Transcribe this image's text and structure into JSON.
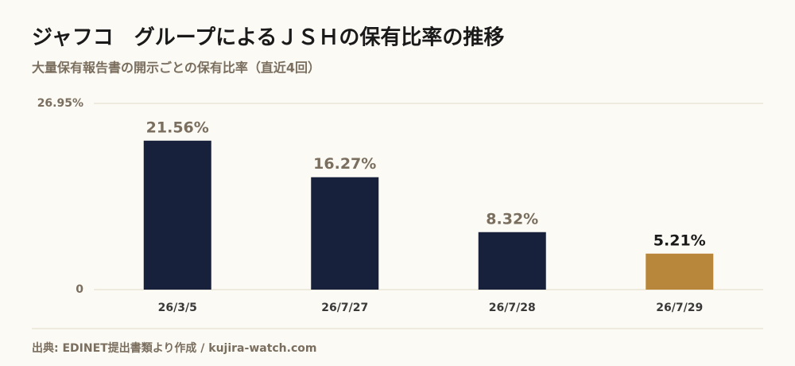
{
  "chart_data": {
    "type": "bar",
    "title": "ジャフコ　グループによるＪＳＨの保有比率の推移",
    "subtitle": "大量保有報告書の開示ごとの保有比率（直近4回）",
    "categories": [
      "26/3/5",
      "26/7/27",
      "26/7/28",
      "26/7/29"
    ],
    "values": [
      21.56,
      16.27,
      8.32,
      5.21
    ],
    "value_labels": [
      "21.56%",
      "16.27%",
      "8.32%",
      "5.21%"
    ],
    "colors": [
      "#17213b",
      "#17213b",
      "#17213b",
      "#b8873b"
    ],
    "label_colors": [
      "#7a6e5f",
      "#7a6e5f",
      "#7a6e5f",
      "#1a1a1a"
    ],
    "ylim": [
      0,
      26.95
    ],
    "yticks": [
      0,
      {
        "value": 26.95,
        "label": "26.95%"
      }
    ],
    "grid": true,
    "source": "出典: EDINET提出書類より作成 / kujira-watch.com"
  }
}
